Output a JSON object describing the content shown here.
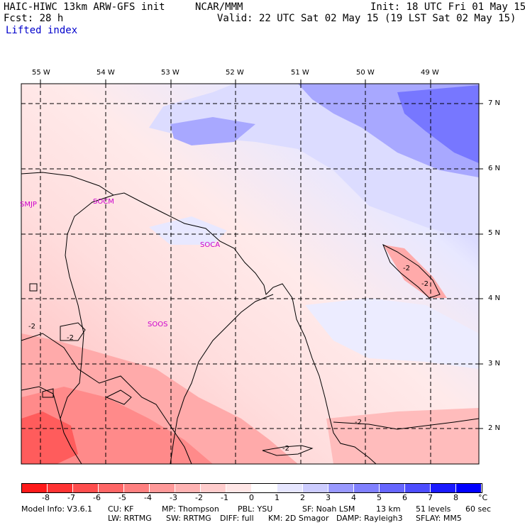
{
  "header": {
    "title": "HAIC-HIWC 13km ARW-GFS init",
    "ncar": "NCAR/MMM",
    "init": "Init: 18 UTC Fri 01 May 15",
    "fcst": "Fcst:   28 h",
    "valid": "Valid: 22 UTC Sat 02 May 15 (19 LST Sat 02 May 15)",
    "field": "Lifted index"
  },
  "map": {
    "lon_labels": [
      "55 W",
      "54 W",
      "53 W",
      "52 W",
      "51 W",
      "50 W",
      "49 W"
    ],
    "lat_labels": [
      "7 N",
      "6 N",
      "5 N",
      "4 N",
      "3 N",
      "2 N"
    ],
    "stations": [
      "SMJP",
      "SOCM",
      "SOCA",
      "SOOS"
    ],
    "contour_labels": [
      "-2",
      "-2",
      "-2",
      "-2",
      "-2",
      "-2"
    ]
  },
  "colorbar": {
    "labels": [
      "-8",
      "-7",
      "-6",
      "-5",
      "-4",
      "-3",
      "-2",
      "-1",
      "0",
      "1",
      "2",
      "3",
      "4",
      "5",
      "6",
      "7",
      "8"
    ],
    "unit": "°C",
    "colors": [
      "#ff1a1a",
      "#ff3333",
      "#ff4d4d",
      "#ff6666",
      "#ff8080",
      "#ff9999",
      "#ffb3b3",
      "#ffcccc",
      "#ffe6e6",
      "#ffffff",
      "#e6e6ff",
      "#ccccff",
      "#9999ff",
      "#8080ff",
      "#6666ff",
      "#4d4dff",
      "#1a1aff",
      "#0000ff"
    ]
  },
  "footer": {
    "line1": [
      "Model Info: V3.6.1",
      "CU: KF",
      "MP: Thompson",
      "PBL: YSU",
      "SF: Noah LSM",
      "13 km",
      "51 levels",
      "60 sec"
    ],
    "line2": [
      "LW: RRTMG",
      "SW: RRTMG",
      "DIFF: full",
      "KM: 2D Smagor",
      "DAMP: Rayleigh3",
      "SFLAY: MM5"
    ]
  }
}
